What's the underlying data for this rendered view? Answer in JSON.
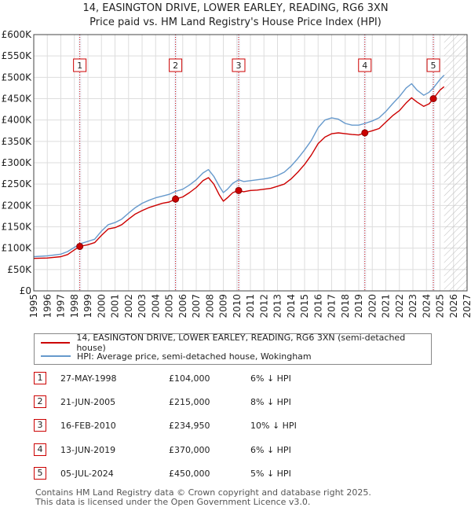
{
  "title": {
    "line1": "14, EASINGTON DRIVE, LOWER EARLEY, READING, RG6 3XN",
    "line2": "Price paid vs. HM Land Registry's House Price Index (HPI)"
  },
  "colors": {
    "property": "#cc0000",
    "hpi": "#6699cc",
    "marker_border": "#cc0000",
    "grid": "#dddddd",
    "shade": "#e8eef8"
  },
  "chart_data": {
    "type": "line",
    "title": "Price paid vs. HM Land Registry's House Price Index (HPI)",
    "xlim": [
      1995,
      2027
    ],
    "ylim": [
      0,
      600000
    ],
    "x_ticks": [
      "1995",
      "1996",
      "1997",
      "1998",
      "1999",
      "2000",
      "2001",
      "2002",
      "2003",
      "2004",
      "2005",
      "2006",
      "2007",
      "2008",
      "2009",
      "2010",
      "2011",
      "2012",
      "2013",
      "2014",
      "2015",
      "2016",
      "2017",
      "2018",
      "2019",
      "2020",
      "2021",
      "2022",
      "2023",
      "2024",
      "2025",
      "2026",
      "2027"
    ],
    "y_ticks": [
      {
        "value": 0,
        "label": "£0"
      },
      {
        "value": 50000,
        "label": "£50K"
      },
      {
        "value": 100000,
        "label": "£100K"
      },
      {
        "value": 150000,
        "label": "£150K"
      },
      {
        "value": 200000,
        "label": "£200K"
      },
      {
        "value": 250000,
        "label": "£250K"
      },
      {
        "value": 300000,
        "label": "£300K"
      },
      {
        "value": 350000,
        "label": "£350K"
      },
      {
        "value": 400000,
        "label": "£400K"
      },
      {
        "value": 450000,
        "label": "£450K"
      },
      {
        "value": 500000,
        "label": "£500K"
      },
      {
        "value": 550000,
        "label": "£550K"
      },
      {
        "value": 600000,
        "label": "£600K"
      }
    ],
    "future_hatch_from": 2025.3,
    "series": [
      {
        "name": "14, EASINGTON DRIVE, LOWER EARLEY, READING, RG6 3XN (semi-detached house)",
        "color": "#cc0000",
        "x": [
          1995.0,
          1996.0,
          1997.0,
          1997.5,
          1998.0,
          1998.4,
          1999.0,
          1999.5,
          2000.0,
          2000.5,
          2001.0,
          2001.5,
          2002.0,
          2002.5,
          2003.0,
          2003.5,
          2004.0,
          2004.5,
          2005.0,
          2005.47,
          2006.0,
          2006.5,
          2007.0,
          2007.5,
          2007.9,
          2008.3,
          2008.7,
          2009.0,
          2009.3,
          2009.7,
          2010.13,
          2010.5,
          2011.0,
          2011.5,
          2012.0,
          2012.5,
          2013.0,
          2013.5,
          2014.0,
          2014.5,
          2015.0,
          2015.5,
          2016.0,
          2016.5,
          2017.0,
          2017.5,
          2018.0,
          2018.5,
          2019.0,
          2019.45,
          2020.0,
          2020.5,
          2021.0,
          2021.5,
          2022.0,
          2022.5,
          2022.9,
          2023.3,
          2023.8,
          2024.2,
          2024.51,
          2025.0,
          2025.3
        ],
        "y": [
          76000,
          77000,
          80000,
          85000,
          96000,
          104000,
          108000,
          113000,
          130000,
          145000,
          148000,
          155000,
          168000,
          180000,
          188000,
          195000,
          200000,
          205000,
          208000,
          215000,
          220000,
          230000,
          242000,
          258000,
          265000,
          250000,
          225000,
          210000,
          218000,
          230000,
          234950,
          232000,
          235000,
          236000,
          238000,
          240000,
          245000,
          250000,
          262000,
          278000,
          296000,
          318000,
          345000,
          360000,
          368000,
          370000,
          368000,
          366000,
          365000,
          370000,
          375000,
          380000,
          395000,
          410000,
          422000,
          440000,
          452000,
          442000,
          432000,
          438000,
          450000,
          470000,
          478000
        ]
      },
      {
        "name": "HPI: Average price, semi-detached house, Wokingham",
        "color": "#6699cc",
        "x": [
          1995.0,
          1996.0,
          1997.0,
          1997.5,
          1998.0,
          1998.4,
          1999.0,
          1999.5,
          2000.0,
          2000.5,
          2001.0,
          2001.5,
          2002.0,
          2002.5,
          2003.0,
          2003.5,
          2004.0,
          2004.5,
          2005.0,
          2005.47,
          2006.0,
          2006.5,
          2007.0,
          2007.5,
          2007.9,
          2008.3,
          2008.7,
          2009.0,
          2009.3,
          2009.7,
          2010.13,
          2010.5,
          2011.0,
          2011.5,
          2012.0,
          2012.5,
          2013.0,
          2013.5,
          2014.0,
          2014.5,
          2015.0,
          2015.5,
          2016.0,
          2016.5,
          2017.0,
          2017.5,
          2018.0,
          2018.5,
          2019.0,
          2019.45,
          2020.0,
          2020.5,
          2021.0,
          2021.5,
          2022.0,
          2022.5,
          2022.9,
          2023.3,
          2023.8,
          2024.2,
          2024.51,
          2025.0,
          2025.3
        ],
        "y": [
          80000,
          82000,
          86000,
          92000,
          102000,
          110000,
          116000,
          121000,
          140000,
          155000,
          160000,
          168000,
          182000,
          195000,
          205000,
          212000,
          218000,
          222000,
          226000,
          233000,
          238000,
          248000,
          260000,
          276000,
          284000,
          268000,
          245000,
          230000,
          238000,
          252000,
          260000,
          256000,
          258000,
          260000,
          262000,
          265000,
          270000,
          278000,
          292000,
          310000,
          330000,
          352000,
          382000,
          400000,
          405000,
          402000,
          392000,
          388000,
          388000,
          392000,
          398000,
          405000,
          420000,
          438000,
          455000,
          475000,
          485000,
          470000,
          458000,
          465000,
          475000,
          495000,
          505000
        ]
      }
    ],
    "sales": [
      {
        "num": "1",
        "x": 1998.4,
        "price": 104000
      },
      {
        "num": "2",
        "x": 2005.47,
        "price": 215000
      },
      {
        "num": "3",
        "x": 2010.13,
        "price": 234950
      },
      {
        "num": "4",
        "x": 2019.45,
        "price": 370000
      },
      {
        "num": "5",
        "x": 2024.51,
        "price": 450000
      }
    ]
  },
  "legend": {
    "property": "14, EASINGTON DRIVE, LOWER EARLEY, READING, RG6 3XN (semi-detached house)",
    "hpi": "HPI: Average price, semi-detached house, Wokingham"
  },
  "transactions": [
    {
      "num": "1",
      "date": "27-MAY-1998",
      "price": "£104,000",
      "hpi": "6% ↓ HPI"
    },
    {
      "num": "2",
      "date": "21-JUN-2005",
      "price": "£215,000",
      "hpi": "8% ↓ HPI"
    },
    {
      "num": "3",
      "date": "16-FEB-2010",
      "price": "£234,950",
      "hpi": "10% ↓ HPI"
    },
    {
      "num": "4",
      "date": "13-JUN-2019",
      "price": "£370,000",
      "hpi": "6% ↓ HPI"
    },
    {
      "num": "5",
      "date": "05-JUL-2024",
      "price": "£450,000",
      "hpi": "5% ↓ HPI"
    }
  ],
  "footer": {
    "line1": "Contains HM Land Registry data © Crown copyright and database right 2025.",
    "line2": "This data is licensed under the Open Government Licence v3.0."
  }
}
